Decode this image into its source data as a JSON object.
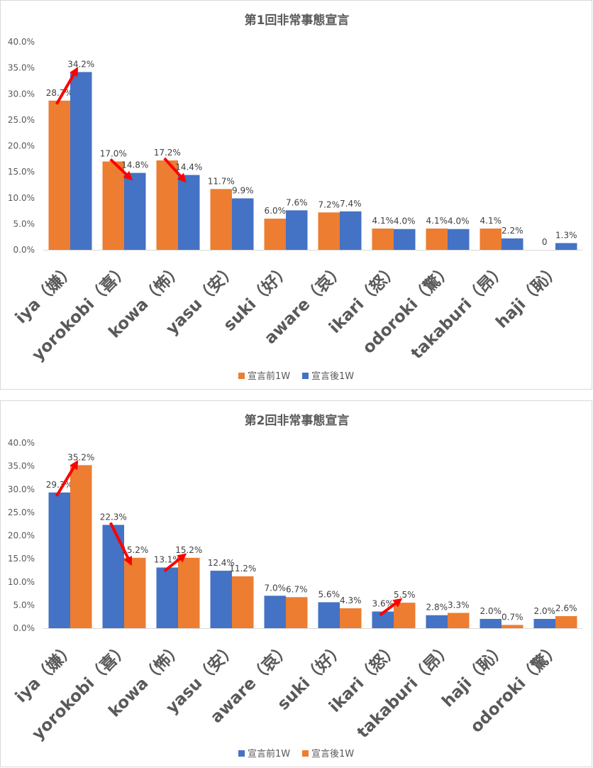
{
  "chart_data": [
    {
      "type": "bar",
      "title": "第1回非常事態宣言",
      "categories": [
        "iya（嫌）",
        "yorokobi（喜）",
        "kowa（怖）",
        "yasu（安）",
        "suki（好）",
        "aware（哀）",
        "ikari（怒）",
        "odoroki（驚）",
        "takaburi（昂）",
        "haji（恥）"
      ],
      "series": [
        {
          "name": "宣言前1W",
          "color": "#ed7d31",
          "values": [
            28.7,
            17.0,
            17.2,
            11.7,
            6.0,
            7.2,
            4.1,
            4.1,
            4.1,
            0
          ],
          "labels": [
            "28.7%",
            "17.0%",
            "17.2%",
            "11.7%",
            "6.0%",
            "7.2%",
            "4.1%",
            "4.1%",
            "4.1%",
            "0"
          ]
        },
        {
          "name": "宣言後1W",
          "color": "#4472c4",
          "values": [
            34.2,
            14.8,
            14.4,
            9.9,
            7.6,
            7.4,
            4.0,
            4.0,
            2.2,
            1.3
          ],
          "labels": [
            "34.2%",
            "14.8%",
            "14.4%",
            "9.9%",
            "7.6%",
            "7.4%",
            "4.0%",
            "4.0%",
            "2.2%",
            "1.3%"
          ]
        }
      ],
      "yticks": [
        "0.0%",
        "5.0%",
        "10.0%",
        "15.0%",
        "20.0%",
        "25.0%",
        "30.0%",
        "35.0%",
        "40.0%"
      ],
      "ylim": [
        0,
        40
      ],
      "grid": false,
      "legend_position": "bottom",
      "annotations": {
        "arrow_color": "#ff0000",
        "arrows_on_categories": [
          "iya（嫌）",
          "yorokobi（喜）",
          "kowa（怖）"
        ]
      }
    },
    {
      "type": "bar",
      "title": "第2回非常事態宣言",
      "categories": [
        "iya（嫌）",
        "yorokobi（喜）",
        "kowa（怖）",
        "yasu（安）",
        "aware（哀）",
        "suki（好）",
        "ikari（怒）",
        "takaburi（昂）",
        "haji（恥）",
        "odoroki（驚）"
      ],
      "series": [
        {
          "name": "宣言前1W",
          "color": "#4472c4",
          "values": [
            29.3,
            22.3,
            13.1,
            12.4,
            7.0,
            5.6,
            3.6,
            2.8,
            2.0,
            2.0
          ],
          "labels": [
            "29.3%",
            "22.3%",
            "13.1%",
            "12.4%",
            "7.0%",
            "5.6%",
            "3.6%",
            "2.8%",
            "2.0%",
            "2.0%"
          ]
        },
        {
          "name": "宣言後1W",
          "color": "#ed7d31",
          "values": [
            35.2,
            15.2,
            15.2,
            11.2,
            6.7,
            4.3,
            5.5,
            3.3,
            0.7,
            2.6
          ],
          "labels": [
            "35.2%",
            "15.2%",
            "15.2%",
            "11.2%",
            "6.7%",
            "4.3%",
            "5.5%",
            "3.3%",
            "0.7%",
            "2.6%"
          ]
        }
      ],
      "yticks": [
        "0.0%",
        "5.0%",
        "10.0%",
        "15.0%",
        "20.0%",
        "25.0%",
        "30.0%",
        "35.0%",
        "40.0%"
      ],
      "ylim": [
        0,
        40
      ],
      "grid": false,
      "legend_position": "bottom",
      "annotations": {
        "arrow_color": "#ff0000",
        "arrows_on_categories": [
          "iya（嫌）",
          "yorokobi（喜）",
          "kowa（怖）",
          "ikari（怒）"
        ]
      }
    }
  ]
}
